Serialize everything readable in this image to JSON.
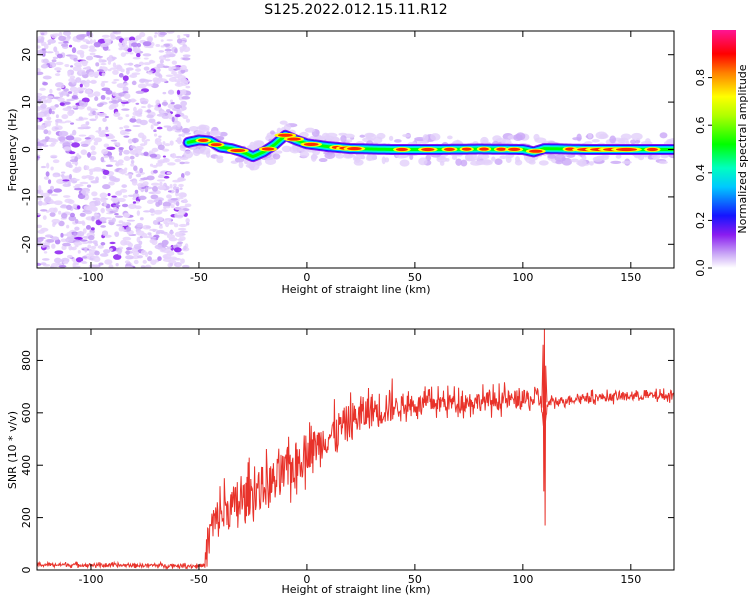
{
  "title": "S125.2022.012.15.11.R12",
  "colors": {
    "trace": "#e8322a",
    "axis": "#000000"
  },
  "chart_data": [
    {
      "type": "heatmap",
      "title": "",
      "xlabel": "Height of straight line (km)",
      "ylabel": "Frequency (Hz)",
      "xlim": [
        -125,
        170
      ],
      "ylim": [
        -25,
        25
      ],
      "xticks": [
        -100,
        -50,
        0,
        50,
        100,
        150
      ],
      "yticks": [
        -20,
        -10,
        0,
        10,
        20
      ],
      "colorbar": {
        "label": "Normalized spectral amplitude",
        "range": [
          0,
          1
        ],
        "ticks": [
          0.0,
          0.2,
          0.4,
          0.6,
          0.8
        ],
        "colormap": "rainbow (white-violet-blue-cyan-green-yellow-red-magenta)"
      },
      "noise_region_km": [
        -125,
        -55
      ],
      "signal_start_km": -55,
      "ridge": {
        "x": [
          -55,
          -50,
          -45,
          -40,
          -35,
          -30,
          -25,
          -20,
          -15,
          -10,
          -5,
          0,
          10,
          20,
          40,
          60,
          80,
          100,
          105,
          110,
          130,
          150,
          170
        ],
        "y": [
          1.5,
          2.0,
          1.8,
          0.5,
          0.2,
          -0.5,
          -1.5,
          -0.5,
          1.0,
          3.0,
          2.0,
          1.2,
          0.6,
          0.2,
          0.0,
          0.0,
          0.1,
          0.0,
          -0.5,
          0.2,
          0.0,
          0.0,
          0.0
        ]
      }
    },
    {
      "type": "line",
      "title": "",
      "xlabel": "Height of straight line (km)",
      "ylabel": "SNR (10 * v/v)",
      "xlim": [
        -125,
        170
      ],
      "ylim": [
        0,
        920
      ],
      "xticks": [
        -100,
        -50,
        0,
        50,
        100,
        150
      ],
      "yticks": [
        0,
        200,
        400,
        600,
        800
      ],
      "series": [
        {
          "x": [
            -125,
            -110,
            -90,
            -70,
            -50,
            -47,
            -45,
            -40,
            -35,
            -30,
            -25,
            -20,
            -15,
            -10,
            -5,
            0,
            5,
            10,
            15,
            20,
            25,
            30,
            35,
            40,
            45,
            50,
            55,
            60,
            65,
            70,
            75,
            80,
            85,
            90,
            95,
            100,
            105,
            108,
            110,
            112,
            115,
            120,
            130,
            140,
            150,
            160,
            170
          ],
          "y": [
            20,
            20,
            18,
            18,
            15,
            20,
            150,
            210,
            240,
            260,
            300,
            320,
            340,
            370,
            410,
            450,
            480,
            510,
            540,
            570,
            590,
            610,
            620,
            625,
            630,
            630,
            635,
            640,
            640,
            640,
            645,
            645,
            645,
            650,
            650,
            650,
            650,
            650,
            560,
            640,
            640,
            650,
            660,
            660,
            665,
            665,
            665
          ]
        }
      ],
      "spike": {
        "x": 110,
        "max": 920,
        "min": 170
      }
    }
  ]
}
